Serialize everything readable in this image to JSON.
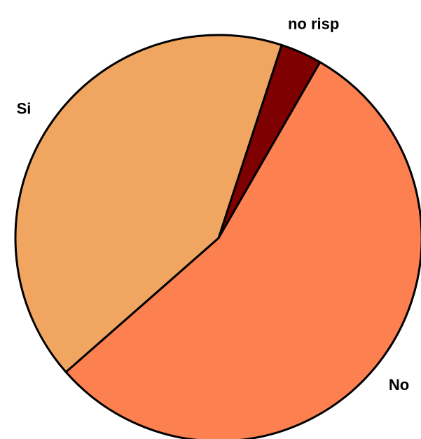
{
  "chart_data": {
    "type": "pie",
    "categories": [
      "no risp",
      "No",
      "Si"
    ],
    "values": [
      3.3,
      55.2,
      41.5
    ],
    "colors": [
      "#7f0000",
      "#fd8050",
      "#f0a660"
    ]
  }
}
